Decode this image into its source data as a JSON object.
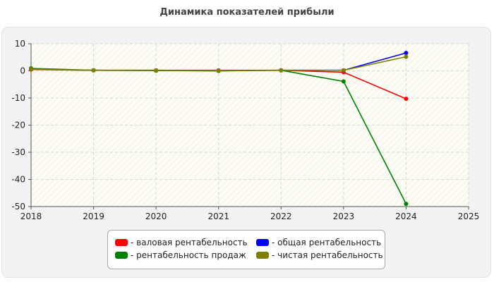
{
  "chart_data": {
    "type": "line",
    "title": "Динамика показателей прибыли",
    "xlabel": "",
    "ylabel": "",
    "xlim": [
      2018,
      2025
    ],
    "ylim": [
      -50,
      10
    ],
    "x_ticks": [
      2018,
      2019,
      2020,
      2021,
      2022,
      2023,
      2024,
      2025
    ],
    "y_ticks": [
      10,
      0,
      -10,
      -20,
      -30,
      -40,
      -50
    ],
    "grid": true,
    "legend_position": "bottom",
    "series": [
      {
        "name": "- валовая рентабельность",
        "color": "#ff0000",
        "x": [
          2018,
          2019,
          2020,
          2021,
          2022,
          2023,
          2024
        ],
        "values": [
          0.5,
          0.2,
          0.2,
          0.2,
          0.2,
          -0.5,
          -10.3
        ]
      },
      {
        "name": "- общая рентабельность",
        "color": "#0000ff",
        "x": [
          2018,
          2019,
          2020,
          2021,
          2022,
          2023,
          2024
        ],
        "values": [
          0.7,
          0.2,
          0.1,
          0.0,
          0.2,
          0.2,
          6.6
        ]
      },
      {
        "name": "- рентабельность продаж",
        "color": "#008000",
        "x": [
          2018,
          2019,
          2020,
          2021,
          2022,
          2023,
          2024
        ],
        "values": [
          0.9,
          0.2,
          0.1,
          0.0,
          0.2,
          -3.9,
          -49.0
        ]
      },
      {
        "name": "- чистая рентабельность",
        "color": "#808000",
        "x": [
          2018,
          2019,
          2020,
          2021,
          2022,
          2023,
          2024
        ],
        "values": [
          0.6,
          0.2,
          0.2,
          0.1,
          0.2,
          0.2,
          5.2
        ]
      }
    ]
  }
}
